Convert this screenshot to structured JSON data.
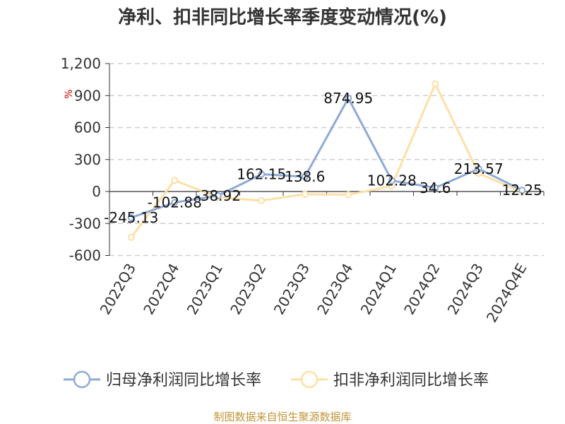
{
  "chart_data": {
    "type": "line",
    "title": "净利、扣非同比增长率季度变动情况(%)",
    "ylabel": "%",
    "xlabel": "",
    "categories": [
      "2022Q3",
      "2022Q4",
      "2023Q1",
      "2023Q2",
      "2023Q3",
      "2023Q4",
      "2024Q1",
      "2024Q2",
      "2024Q3",
      "2024Q4E"
    ],
    "ylim": [
      -600,
      1200
    ],
    "yticks": [
      -600,
      -300,
      0,
      300,
      600,
      900,
      1200
    ],
    "ytick_labels": [
      "-600",
      "-300",
      "0",
      "300",
      "600",
      "900",
      "1,200"
    ],
    "grid": true,
    "legend": "bottom",
    "series": [
      {
        "name": "归母净利润同比增长率",
        "color": "#8eaad6",
        "values": [
          -245.13,
          -102.88,
          -38.92,
          162.15,
          138.6,
          874.95,
          102.28,
          34.6,
          213.57,
          12.25
        ],
        "labels": [
          "-245.13",
          "-102.88",
          "-38.92",
          "162.15",
          "138.6",
          "874.95",
          "102.28",
          "34.6",
          "213.57",
          "12.25"
        ]
      },
      {
        "name": "扣非净利润同比增长率",
        "color": "#fde0a6",
        "values": [
          -430,
          105,
          -55,
          -85,
          -25,
          -30,
          50,
          1010,
          170,
          -5
        ]
      }
    ]
  },
  "footer": {
    "source": "制图数据来自恒生聚源数据库"
  }
}
